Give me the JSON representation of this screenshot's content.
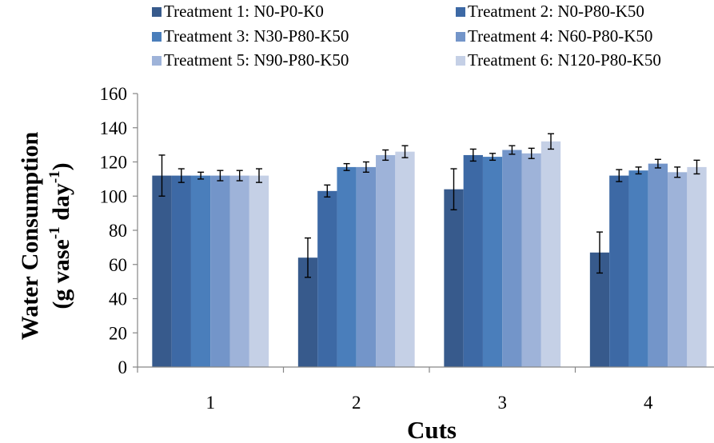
{
  "chart_data": {
    "type": "bar",
    "categories": [
      "1",
      "2",
      "3",
      "4"
    ],
    "xlabel": "Cuts",
    "ylabel_line1": "Water Consumption",
    "ylabel_line2_prefix": "(g vase",
    "ylabel_sup1": "-1",
    "ylabel_line2_mid": " day",
    "ylabel_sup2": "-1",
    "ylabel_line2_suffix": ")",
    "ylim": [
      0,
      160
    ],
    "yticks": [
      0,
      20,
      40,
      60,
      80,
      100,
      120,
      140,
      160
    ],
    "grid": false,
    "legend_position": "top",
    "series": [
      {
        "name": "Treatment 1: N0-P0-K0",
        "color": "#375A8C",
        "values": [
          112,
          64,
          104,
          67
        ],
        "errors": [
          12,
          11.5,
          12,
          12
        ]
      },
      {
        "name": "Treatment 2: N0-P80-K50",
        "color": "#3D69A5",
        "values": [
          112,
          103,
          124,
          112
        ],
        "errors": [
          4,
          3.5,
          3.5,
          3.5
        ]
      },
      {
        "name": "Treatment 3: N30-P80-K50",
        "color": "#4A7EBB",
        "values": [
          112,
          117,
          123,
          115
        ],
        "errors": [
          2,
          2,
          2,
          2
        ]
      },
      {
        "name": "Treatment 4: N60-P80-K50",
        "color": "#7395C9",
        "values": [
          112,
          117,
          127,
          119
        ],
        "errors": [
          3,
          3,
          2.5,
          2.5
        ]
      },
      {
        "name": "Treatment 5: N90-P80-K50",
        "color": "#9EB3D9",
        "values": [
          112,
          124,
          125,
          114
        ],
        "errors": [
          3,
          3,
          3,
          3
        ]
      },
      {
        "name": "Treatment 6: N120-P80-K50",
        "color": "#C5D0E6",
        "values": [
          112,
          126,
          132,
          117
        ],
        "errors": [
          4,
          3.5,
          4.5,
          4
        ]
      }
    ]
  }
}
